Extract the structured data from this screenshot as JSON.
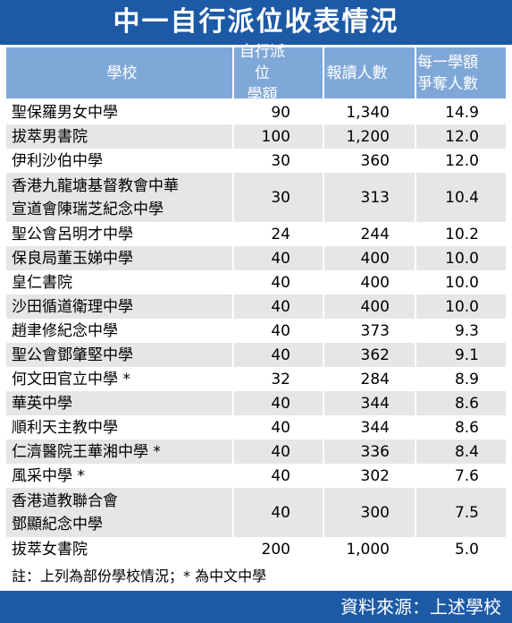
{
  "title": "中一自行派位收表情況",
  "table": {
    "header": [
      "學校",
      "自行派位\n學額",
      "報讀人數",
      "每一學額\n爭奪人數"
    ],
    "rows": [
      [
        "聖保羅男女中學",
        "90",
        "1,340",
        "14.9"
      ],
      [
        "拔萃男書院",
        "100",
        "1,200",
        "12.0"
      ],
      [
        "伊利沙伯中學",
        "30",
        "360",
        "12.0"
      ],
      [
        "香港九龍塘基督教會中華\n宣道會陳瑞芝紀念中學",
        "30",
        "313",
        "10.4"
      ],
      [
        "聖公會呂明才中學",
        "24",
        "244",
        "10.2"
      ],
      [
        "保良局董玉娣中學",
        "40",
        "400",
        "10.0"
      ],
      [
        "皇仁書院",
        "40",
        "400",
        "10.0"
      ],
      [
        "沙田循道衛理中學",
        "40",
        "400",
        "10.0"
      ],
      [
        "趙聿修紀念中學",
        "40",
        "373",
        "9.3"
      ],
      [
        "聖公會鄧肇堅中學",
        "40",
        "362",
        "9.1"
      ],
      [
        "何文田官立中學 *",
        "32",
        "284",
        "8.9"
      ],
      [
        "華英中學",
        "40",
        "344",
        "8.6"
      ],
      [
        "順利天主教中學",
        "40",
        "344",
        "8.6"
      ],
      [
        "仁濟醫院王華湘中學 *",
        "40",
        "336",
        "8.4"
      ],
      [
        "風采中學 *",
        "40",
        "302",
        "7.6"
      ],
      [
        "香港道教聯合會\n鄧顯紀念中學",
        "40",
        "300",
        "7.5"
      ],
      [
        "拔萃女書院",
        "200",
        "1,000",
        "5.0"
      ]
    ]
  },
  "footnote": "註：上列為部份學校情況；* 為中文中學",
  "source": "資料來源：上述學校"
}
